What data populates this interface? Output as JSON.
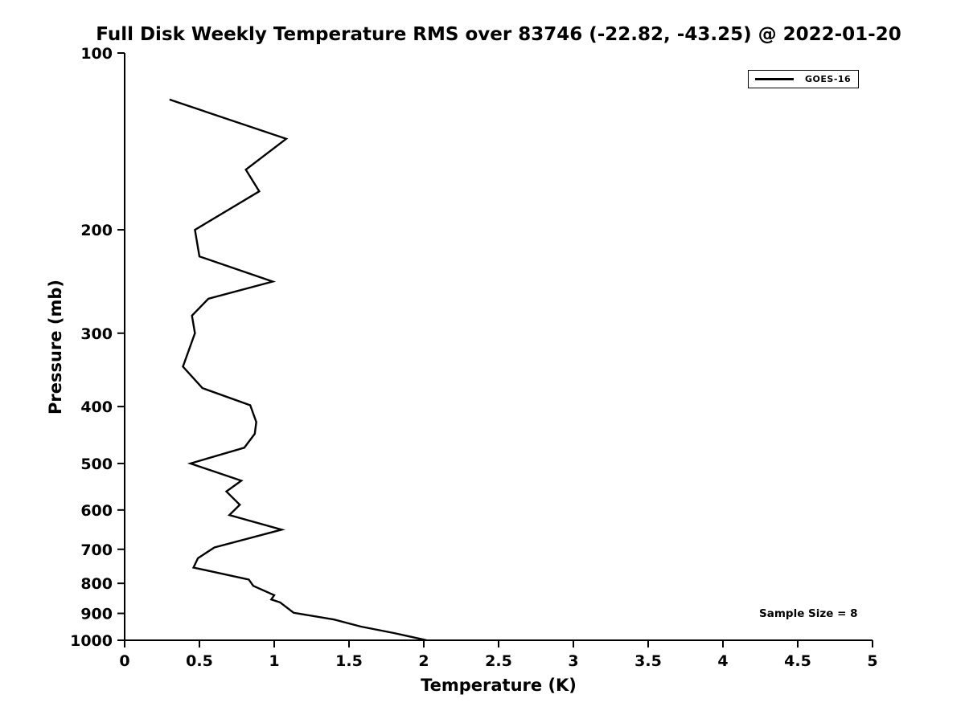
{
  "chart_data": {
    "type": "line",
    "title": "Full Disk Weekly Temperature RMS over 83746 (-22.82, -43.25) @ 2022-01-20",
    "xlabel": "Temperature (K)",
    "ylabel": "Pressure (mb)",
    "xlim": [
      0,
      5
    ],
    "ylim": [
      100,
      1000
    ],
    "yscale": "log",
    "y_inverted": true,
    "grid": false,
    "xticks": [
      0,
      0.5,
      1,
      1.5,
      2,
      2.5,
      3,
      3.5,
      4,
      4.5,
      5
    ],
    "xtick_labels": [
      "0",
      "0.5",
      "1",
      "1.5",
      "2",
      "2.5",
      "3",
      "3.5",
      "4",
      "4.5",
      "5"
    ],
    "yticks": [
      100,
      200,
      300,
      400,
      500,
      600,
      700,
      800,
      900,
      1000
    ],
    "legend": {
      "position": "top-right",
      "entries": [
        {
          "label": "GOES-16",
          "color": "#000000",
          "line_width": 3
        }
      ]
    },
    "annotation": "Sample Size = 8",
    "series": [
      {
        "name": "GOES-16",
        "color": "#000000",
        "points_pressure_temperature": [
          [
            120,
            0.3
          ],
          [
            140,
            1.08
          ],
          [
            158,
            0.81
          ],
          [
            172,
            0.9
          ],
          [
            200,
            0.47
          ],
          [
            222,
            0.5
          ],
          [
            245,
            0.99
          ],
          [
            262,
            0.56
          ],
          [
            280,
            0.45
          ],
          [
            300,
            0.47
          ],
          [
            342,
            0.39
          ],
          [
            372,
            0.52
          ],
          [
            398,
            0.84
          ],
          [
            425,
            0.88
          ],
          [
            445,
            0.87
          ],
          [
            470,
            0.8
          ],
          [
            500,
            0.44
          ],
          [
            535,
            0.78
          ],
          [
            558,
            0.68
          ],
          [
            588,
            0.77
          ],
          [
            612,
            0.7
          ],
          [
            648,
            1.05
          ],
          [
            695,
            0.6
          ],
          [
            725,
            0.49
          ],
          [
            752,
            0.46
          ],
          [
            788,
            0.83
          ],
          [
            808,
            0.86
          ],
          [
            838,
            1.0
          ],
          [
            852,
            0.98
          ],
          [
            862,
            1.04
          ],
          [
            898,
            1.13
          ],
          [
            922,
            1.4
          ],
          [
            948,
            1.58
          ],
          [
            972,
            1.8
          ],
          [
            1000,
            2.02
          ]
        ]
      }
    ]
  }
}
